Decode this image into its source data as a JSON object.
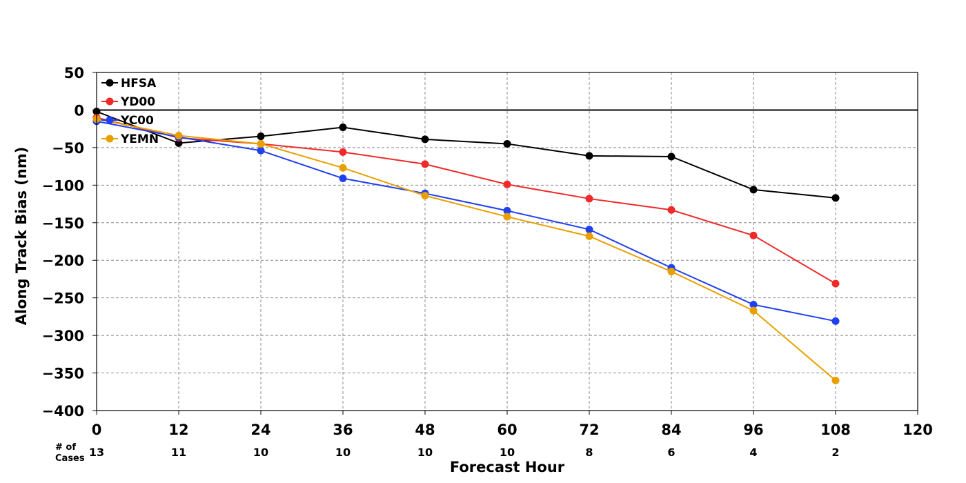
{
  "chart_data": {
    "type": "line",
    "xlabel": "Forecast Hour",
    "ylabel": "Along Track Bias (nm)",
    "xlim": [
      0,
      120
    ],
    "ylim": [
      -400,
      50
    ],
    "x_ticks": [
      0,
      12,
      24,
      36,
      48,
      60,
      72,
      84,
      96,
      108,
      120
    ],
    "y_ticks": [
      50,
      0,
      -50,
      -100,
      -150,
      -200,
      -250,
      -300,
      -350,
      -400
    ],
    "grid": true,
    "zero_line": true,
    "legend_position": "top-left",
    "x": [
      0,
      12,
      24,
      36,
      48,
      60,
      72,
      84,
      96,
      108
    ],
    "series": [
      {
        "name": "HFSA",
        "color": "#000000",
        "values": [
          -2,
          -44,
          -35,
          -23,
          -39,
          -45,
          -61,
          -62,
          -106,
          -117
        ]
      },
      {
        "name": "YD00",
        "color": "#f02a2a",
        "values": [
          -10,
          -37,
          -45,
          -56,
          -72,
          -99,
          -118,
          -133,
          -167,
          -231
        ]
      },
      {
        "name": "YC00",
        "color": "#2040f0",
        "values": [
          -15,
          -36,
          -54,
          -91,
          -111,
          -134,
          -159,
          -210,
          -259,
          -281
        ]
      },
      {
        "name": "YEMN",
        "color": "#e8a000",
        "values": [
          -12,
          -34,
          -45,
          -77,
          -114,
          -142,
          -168,
          -215,
          -267,
          -360
        ]
      }
    ],
    "cases_header": [
      "# of",
      "Cases"
    ],
    "cases": [
      "13",
      "11",
      "10",
      "10",
      "10",
      "10",
      "8",
      "6",
      "4",
      "2"
    ]
  }
}
